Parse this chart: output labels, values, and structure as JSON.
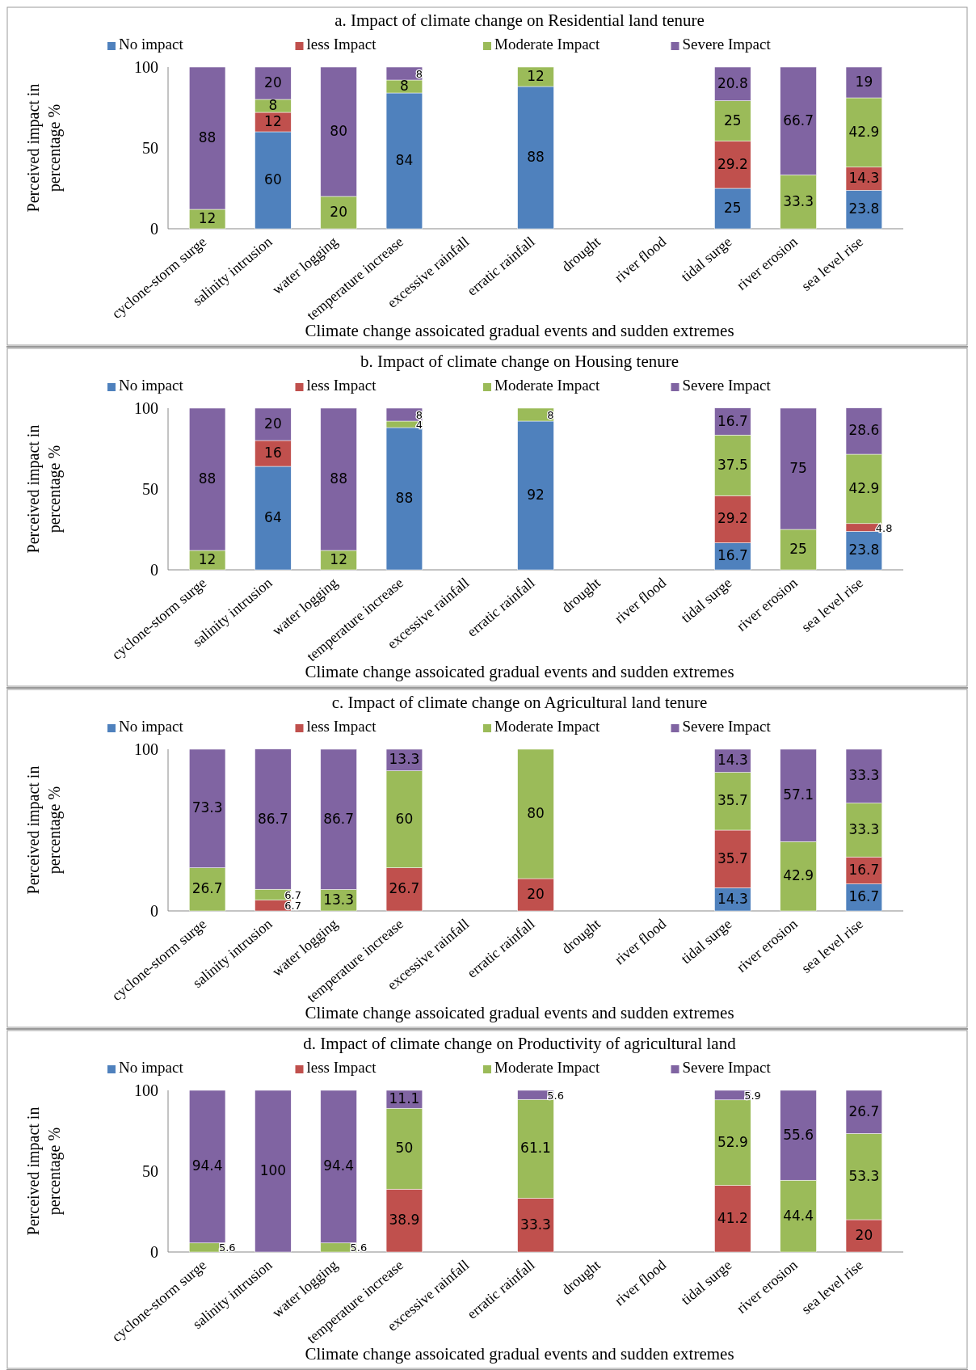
{
  "chart_data": [
    {
      "type": "bar",
      "stacked": true,
      "title": "a. Impact of climate change on Residential land tenure",
      "xlabel": "Climate change assoicated gradual events and sudden extremes",
      "ylabel": "Perceived impact in percentage %",
      "categories": [
        "cyclone-storm surge",
        "salinity intrusion",
        "water logging",
        "temperature increase",
        "excessive rainfall",
        "erratic rainfall",
        "drought",
        "river flood",
        "tidal surge",
        "river erosion",
        "sea level rise"
      ],
      "ylim": [
        0,
        100
      ],
      "yticks": [
        0,
        50,
        100
      ],
      "legend": "top",
      "data_labels": true,
      "series": [
        {
          "name": "No impact",
          "color": "#4f81bd",
          "values": [
            null,
            60,
            null,
            84,
            null,
            88,
            null,
            null,
            25,
            null,
            23.8
          ]
        },
        {
          "name": "less Impact",
          "color": "#c0504d",
          "values": [
            null,
            12,
            null,
            null,
            null,
            null,
            null,
            null,
            29.2,
            null,
            14.3
          ]
        },
        {
          "name": "Moderate Impact",
          "color": "#9bbb59",
          "values": [
            12,
            8,
            20,
            8,
            null,
            12,
            null,
            null,
            25,
            33.3,
            42.9
          ]
        },
        {
          "name": "Severe Impact",
          "color": "#8064a2",
          "values": [
            88,
            20,
            80,
            8,
            null,
            null,
            null,
            null,
            20.8,
            66.7,
            19
          ]
        }
      ]
    },
    {
      "type": "bar",
      "stacked": true,
      "title": "b. Impact of climate change on Housing tenure",
      "xlabel": "Climate change assoicated gradual events and sudden extremes",
      "ylabel": "Perceived impact in percentage %",
      "categories": [
        "cyclone-storm surge",
        "salinity intrusion",
        "water logging",
        "temperature increase",
        "excessive rainfall",
        "erratic rainfall",
        "drought",
        "river flood",
        "tidal surge",
        "river erosion",
        "sea level rise"
      ],
      "ylim": [
        0,
        100
      ],
      "yticks": [
        0,
        50,
        100
      ],
      "legend": "top",
      "data_labels": true,
      "series": [
        {
          "name": "No impact",
          "color": "#4f81bd",
          "values": [
            null,
            64,
            null,
            88,
            null,
            92,
            null,
            null,
            16.7,
            null,
            23.8
          ]
        },
        {
          "name": "less Impact",
          "color": "#c0504d",
          "values": [
            null,
            16,
            null,
            null,
            null,
            null,
            null,
            null,
            29.2,
            null,
            4.8
          ]
        },
        {
          "name": "Moderate Impact",
          "color": "#9bbb59",
          "values": [
            12,
            null,
            12,
            4,
            null,
            8,
            null,
            null,
            37.5,
            25,
            42.9
          ]
        },
        {
          "name": "Severe Impact",
          "color": "#8064a2",
          "values": [
            88,
            20,
            88,
            8,
            null,
            null,
            null,
            null,
            16.7,
            75,
            28.6
          ]
        }
      ]
    },
    {
      "type": "bar",
      "stacked": true,
      "title": "c. Impact of climate change on Agricultural land tenure",
      "xlabel": "Climate change assoicated gradual events and sudden extremes",
      "ylabel": "Perceived impact in percentage %",
      "categories": [
        "cyclone-storm surge",
        "salinity intrusion",
        "water logging",
        "temperature increase",
        "excessive rainfall",
        "erratic rainfall",
        "drought",
        "river flood",
        "tidal surge",
        "river erosion",
        "sea level rise"
      ],
      "ylim": [
        0,
        100
      ],
      "yticks": [
        0,
        100
      ],
      "legend": "top",
      "data_labels": true,
      "series": [
        {
          "name": "No impact",
          "color": "#4f81bd",
          "values": [
            null,
            null,
            null,
            null,
            null,
            null,
            null,
            null,
            14.3,
            null,
            16.7
          ]
        },
        {
          "name": "less Impact",
          "color": "#c0504d",
          "values": [
            null,
            6.7,
            null,
            26.7,
            null,
            20,
            null,
            null,
            35.7,
            null,
            16.7
          ]
        },
        {
          "name": "Moderate Impact",
          "color": "#9bbb59",
          "values": [
            26.7,
            6.7,
            13.3,
            60,
            null,
            80,
            null,
            null,
            35.7,
            42.9,
            33.3
          ]
        },
        {
          "name": "Severe Impact",
          "color": "#8064a2",
          "values": [
            73.3,
            86.7,
            86.7,
            13.3,
            null,
            null,
            null,
            null,
            14.3,
            57.1,
            33.3
          ]
        }
      ]
    },
    {
      "type": "bar",
      "stacked": true,
      "title": "d. Impact of climate change on Productivity of agricultural land",
      "xlabel": "Climate change assoicated gradual events and sudden extremes",
      "ylabel": "Perceived impact in percentage %",
      "categories": [
        "cyclone-storm surge",
        "salinity intrusion",
        "water logging",
        "temperature increase",
        "excessive rainfall",
        "erratic rainfall",
        "drought",
        "river flood",
        "tidal surge",
        "river erosion",
        "sea level rise"
      ],
      "ylim": [
        0,
        100
      ],
      "yticks": [
        0,
        50,
        100
      ],
      "legend": "top",
      "data_labels": true,
      "series": [
        {
          "name": "No impact",
          "color": "#4f81bd",
          "values": [
            null,
            null,
            null,
            null,
            null,
            null,
            null,
            null,
            null,
            null,
            null
          ]
        },
        {
          "name": "less Impact",
          "color": "#c0504d",
          "values": [
            null,
            null,
            null,
            38.9,
            null,
            33.3,
            null,
            null,
            41.2,
            null,
            20
          ]
        },
        {
          "name": "Moderate Impact",
          "color": "#9bbb59",
          "values": [
            5.6,
            null,
            5.6,
            50,
            null,
            61.1,
            null,
            null,
            52.9,
            44.4,
            53.3
          ]
        },
        {
          "name": "Severe Impact",
          "color": "#8064a2",
          "values": [
            94.4,
            100,
            94.4,
            11.1,
            null,
            5.6,
            null,
            null,
            5.9,
            55.6,
            26.7
          ]
        }
      ]
    }
  ]
}
